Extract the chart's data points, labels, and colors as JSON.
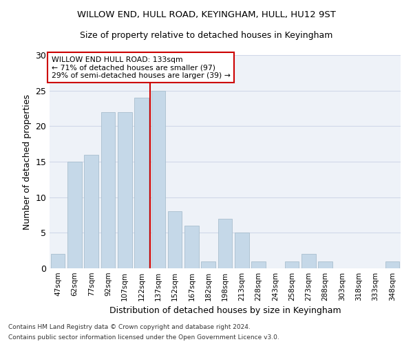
{
  "title1": "WILLOW END, HULL ROAD, KEYINGHAM, HULL, HU12 9ST",
  "title2": "Size of property relative to detached houses in Keyingham",
  "xlabel": "Distribution of detached houses by size in Keyingham",
  "ylabel": "Number of detached properties",
  "categories": [
    "47sqm",
    "62sqm",
    "77sqm",
    "92sqm",
    "107sqm",
    "122sqm",
    "137sqm",
    "152sqm",
    "167sqm",
    "182sqm",
    "198sqm",
    "213sqm",
    "228sqm",
    "243sqm",
    "258sqm",
    "273sqm",
    "288sqm",
    "303sqm",
    "318sqm",
    "333sqm",
    "348sqm"
  ],
  "values": [
    2,
    15,
    16,
    22,
    22,
    24,
    25,
    8,
    6,
    1,
    7,
    5,
    1,
    0,
    1,
    2,
    1,
    0,
    0,
    0,
    1
  ],
  "bar_color": "#c5d8e8",
  "bar_edge_color": "#a8bece",
  "grid_color": "#d0d8e8",
  "vline_color": "#cc0000",
  "annotation_title": "WILLOW END HULL ROAD: 133sqm",
  "annotation_line1": "← 71% of detached houses are smaller (97)",
  "annotation_line2": "29% of semi-detached houses are larger (39) →",
  "annotation_box_color": "#cc0000",
  "ylim": [
    0,
    30
  ],
  "yticks": [
    0,
    5,
    10,
    15,
    20,
    25,
    30
  ],
  "footnote1": "Contains HM Land Registry data © Crown copyright and database right 2024.",
  "footnote2": "Contains public sector information licensed under the Open Government Licence v3.0.",
  "bg_color": "#eef2f8"
}
